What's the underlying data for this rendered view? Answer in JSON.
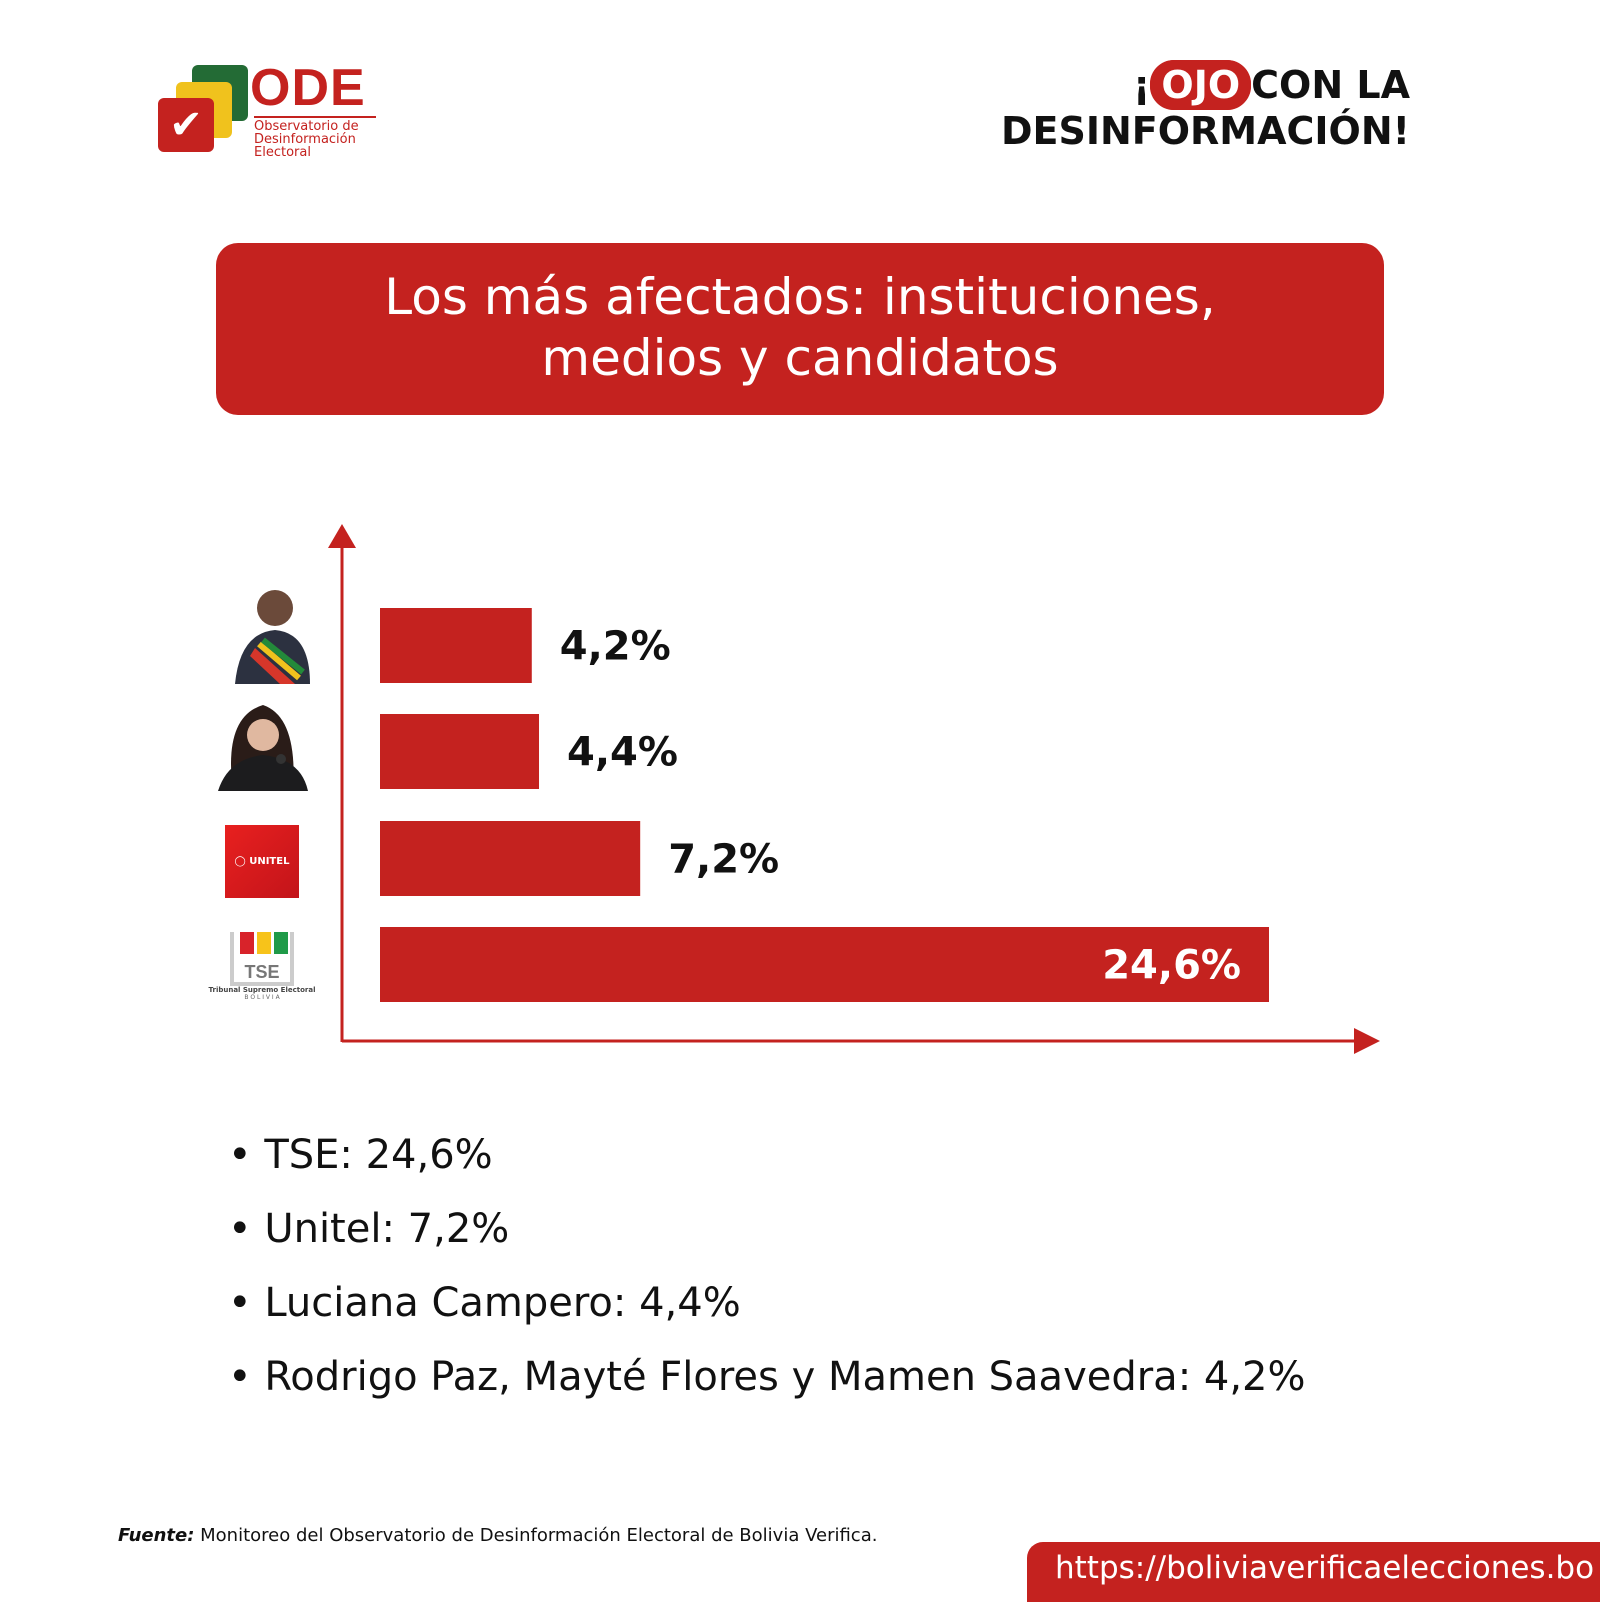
{
  "logo": {
    "name": "ODE",
    "subtitle": [
      "Observatorio de",
      "Desinformación",
      "Electoral"
    ]
  },
  "tagline": {
    "pre": "¡",
    "highlight": "OJO",
    "rest": "CON LA",
    "line2": "DESINFORMACIÓN!"
  },
  "title": [
    "Los más afectados: instituciones,",
    "medios y candidatos"
  ],
  "chart_data": {
    "type": "bar",
    "orientation": "horizontal",
    "categories": [
      "Rodrigo Paz, Mayté Flores y Mamen Saavedra",
      "Luciana Campero",
      "Unitel",
      "TSE"
    ],
    "values": [
      4.2,
      4.4,
      7.2,
      24.6
    ],
    "labels": [
      "4,2%",
      "4,4%",
      "7,2%",
      "24,6%"
    ],
    "bar_color": "#c4221f",
    "xlim": [
      0,
      24.6
    ]
  },
  "icons": {
    "unitel": "UNITEL",
    "tse": "TSE",
    "tse_sub": "Tribunal Supremo Electoral",
    "tse_country": "B O L I V I A"
  },
  "bullets": [
    "TSE: 24,6%",
    "Unitel: 7,2%",
    "Luciana Campero: 4,4%",
    "Rodrigo Paz, Mayté Flores y Mamen Saavedra: 4,2%"
  ],
  "source": {
    "label": "Fuente:",
    "text": " Monitoreo del Observatorio de Desinformación Electoral de Bolivia Verifica."
  },
  "url": "https://boliviaverificaelecciones.bo"
}
